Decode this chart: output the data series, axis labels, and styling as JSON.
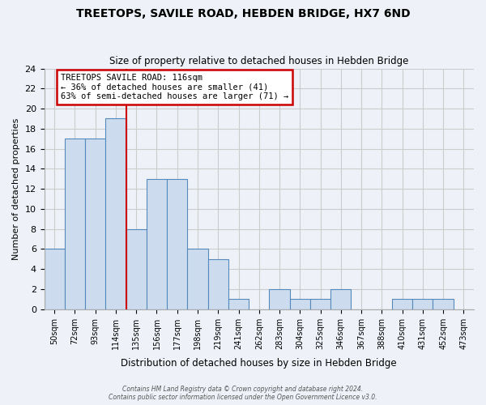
{
  "title": "TREETOPS, SAVILE ROAD, HEBDEN BRIDGE, HX7 6ND",
  "subtitle": "Size of property relative to detached houses in Hebden Bridge",
  "xlabel": "Distribution of detached houses by size in Hebden Bridge",
  "ylabel": "Number of detached properties",
  "bar_values": [
    6,
    17,
    17,
    19,
    8,
    13,
    13,
    6,
    5,
    1,
    0,
    2,
    1,
    1,
    2,
    0,
    0,
    1,
    1,
    1,
    0
  ],
  "bar_labels": [
    "50sqm",
    "72sqm",
    "93sqm",
    "114sqm",
    "135sqm",
    "156sqm",
    "177sqm",
    "198sqm",
    "219sqm",
    "241sqm",
    "262sqm",
    "283sqm",
    "304sqm",
    "325sqm",
    "346sqm",
    "367sqm",
    "388sqm",
    "410sqm",
    "431sqm",
    "452sqm",
    "473sqm"
  ],
  "bar_color": "#ccdcee",
  "bar_edge_color": "#5588bb",
  "annotation_text_line1": "TREETOPS SAVILE ROAD: 116sqm",
  "annotation_text_line2": "← 36% of detached houses are smaller (41)",
  "annotation_text_line3": "63% of semi-detached houses are larger (71) →",
  "annotation_box_edge_color": "#cc0000",
  "annotation_box_fill": "#ffffff",
  "vline_color": "#cc0000",
  "ylim": [
    0,
    24
  ],
  "yticks": [
    0,
    2,
    4,
    6,
    8,
    10,
    12,
    14,
    16,
    18,
    20,
    22,
    24
  ],
  "grid_color": "#cccccc",
  "bg_color": "#eef2f8",
  "footer_line1": "Contains HM Land Registry data © Crown copyright and database right 2024.",
  "footer_line2": "Contains public sector information licensed under the Open Government Licence v3.0."
}
